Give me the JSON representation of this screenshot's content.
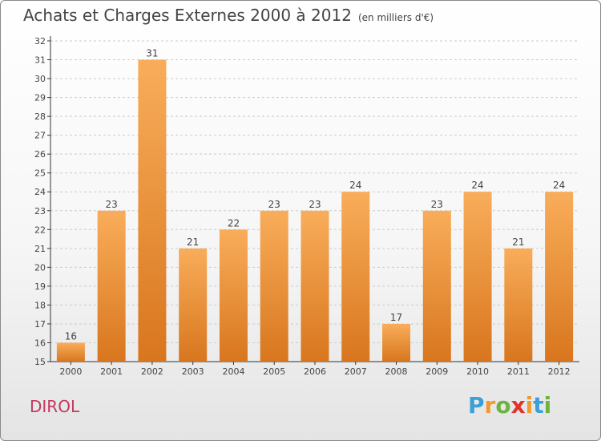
{
  "title": "Achats et Charges Externes 2000 à 2012",
  "unit_label": "(en milliers d'€)",
  "commune_name": "DIROL",
  "logo": {
    "letters": [
      "P",
      "r",
      "o",
      "x",
      "i",
      "t",
      "i"
    ],
    "colors": [
      "#3aa0d8",
      "#f29a2e",
      "#6cb33f",
      "#e2332b",
      "#f29a2e",
      "#3aa0d8",
      "#6cb33f"
    ]
  },
  "colors": {
    "bar_top": "#f9ad5a",
    "bar_bottom": "#d8761e",
    "axis": "#333333",
    "grid": "#cccccc",
    "text": "#444444"
  },
  "chart_data": {
    "type": "bar",
    "categories": [
      "2000",
      "2001",
      "2002",
      "2003",
      "2004",
      "2005",
      "2006",
      "2007",
      "2008",
      "2009",
      "2010",
      "2011",
      "2012"
    ],
    "values": [
      16,
      23,
      31,
      21,
      22,
      23,
      23,
      24,
      17,
      23,
      24,
      21,
      24
    ],
    "ylim": [
      15,
      32
    ],
    "yticks": [
      15,
      16,
      17,
      18,
      19,
      20,
      21,
      22,
      23,
      24,
      25,
      26,
      27,
      28,
      29,
      30,
      31,
      32
    ],
    "grid": "horizontal-dashed",
    "data_labels": true
  }
}
